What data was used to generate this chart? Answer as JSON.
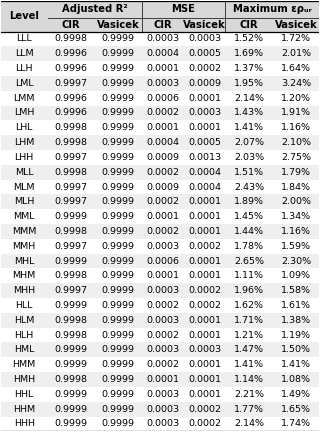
{
  "col_groups": [
    "Adjusted R²",
    "MSE",
    "Maximum ερᵤᵣ"
  ],
  "sub_cols": [
    "CIR",
    "Vasicek",
    "CIR",
    "Vasicek",
    "CIR",
    "Vasicek"
  ],
  "level_col": "Level",
  "rows": [
    [
      "LLL",
      "0.9998",
      "0.9999",
      "0.0003",
      "0.0003",
      "1.52%",
      "1.72%"
    ],
    [
      "LLM",
      "0.9996",
      "0.9999",
      "0.0004",
      "0.0005",
      "1.69%",
      "2.01%"
    ],
    [
      "LLH",
      "0.9996",
      "0.9999",
      "0.0001",
      "0.0002",
      "1.37%",
      "1.64%"
    ],
    [
      "LML",
      "0.9997",
      "0.9999",
      "0.0003",
      "0.0009",
      "1.95%",
      "3.24%"
    ],
    [
      "LMM",
      "0.9996",
      "0.9999",
      "0.0006",
      "0.0001",
      "2.14%",
      "1.20%"
    ],
    [
      "LMH",
      "0.9996",
      "0.9999",
      "0.0002",
      "0.0003",
      "1.43%",
      "1.91%"
    ],
    [
      "LHL",
      "0.9998",
      "0.9999",
      "0.0001",
      "0.0001",
      "1.41%",
      "1.16%"
    ],
    [
      "LHM",
      "0.9998",
      "0.9999",
      "0.0004",
      "0.0005",
      "2.07%",
      "2.10%"
    ],
    [
      "LHH",
      "0.9997",
      "0.9999",
      "0.0009",
      "0.0013",
      "2.03%",
      "2.75%"
    ],
    [
      "MLL",
      "0.9998",
      "0.9999",
      "0.0002",
      "0.0004",
      "1.51%",
      "1.79%"
    ],
    [
      "MLM",
      "0.9997",
      "0.9999",
      "0.0009",
      "0.0004",
      "2.43%",
      "1.84%"
    ],
    [
      "MLH",
      "0.9997",
      "0.9999",
      "0.0002",
      "0.0001",
      "1.89%",
      "2.00%"
    ],
    [
      "MML",
      "0.9999",
      "0.9999",
      "0.0001",
      "0.0001",
      "1.45%",
      "1.34%"
    ],
    [
      "MMM",
      "0.9998",
      "0.9999",
      "0.0002",
      "0.0001",
      "1.44%",
      "1.16%"
    ],
    [
      "MMH",
      "0.9997",
      "0.9999",
      "0.0003",
      "0.0002",
      "1.78%",
      "1.59%"
    ],
    [
      "MHL",
      "0.9999",
      "0.9999",
      "0.0006",
      "0.0001",
      "2.65%",
      "2.30%"
    ],
    [
      "MHM",
      "0.9998",
      "0.9999",
      "0.0001",
      "0.0001",
      "1.11%",
      "1.09%"
    ],
    [
      "MHH",
      "0.9997",
      "0.9999",
      "0.0003",
      "0.0002",
      "1.96%",
      "1.58%"
    ],
    [
      "HLL",
      "0.9999",
      "0.9999",
      "0.0002",
      "0.0002",
      "1.62%",
      "1.61%"
    ],
    [
      "HLM",
      "0.9998",
      "0.9999",
      "0.0003",
      "0.0001",
      "1.71%",
      "1.38%"
    ],
    [
      "HLH",
      "0.9998",
      "0.9999",
      "0.0002",
      "0.0001",
      "1.21%",
      "1.19%"
    ],
    [
      "HML",
      "0.9999",
      "0.9999",
      "0.0003",
      "0.0003",
      "1.47%",
      "1.50%"
    ],
    [
      "HMM",
      "0.9999",
      "0.9999",
      "0.0002",
      "0.0001",
      "1.41%",
      "1.41%"
    ],
    [
      "HMH",
      "0.9998",
      "0.9999",
      "0.0001",
      "0.0001",
      "1.14%",
      "1.08%"
    ],
    [
      "HHL",
      "0.9999",
      "0.9999",
      "0.0003",
      "0.0001",
      "2.21%",
      "1.49%"
    ],
    [
      "HHM",
      "0.9999",
      "0.9999",
      "0.0003",
      "0.0002",
      "1.77%",
      "1.65%"
    ],
    [
      "HHH",
      "0.9999",
      "0.9999",
      "0.0003",
      "0.0002",
      "2.14%",
      "1.74%"
    ]
  ],
  "header_bg": "#d8d8d8",
  "row_bg_odd": "#ffffff",
  "row_bg_even": "#efefef",
  "font_size": 6.8,
  "header_font_size": 7.2
}
